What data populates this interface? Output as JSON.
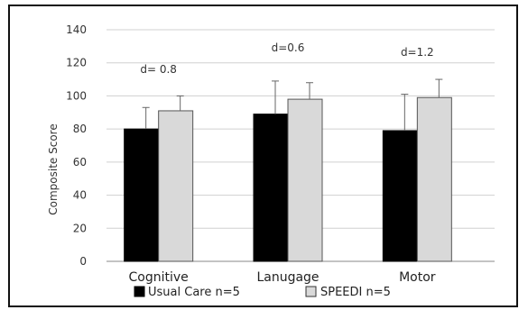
{
  "chart_data": {
    "type": "bar",
    "categories": [
      "Cognitive",
      "Lanugage",
      "Motor"
    ],
    "series": [
      {
        "name": "Usual Care n=5",
        "values": [
          80,
          89,
          79
        ],
        "errors": [
          13,
          20,
          22
        ],
        "color": "#000000"
      },
      {
        "name": "SPEEDI n=5",
        "values": [
          91,
          98,
          99
        ],
        "errors": [
          9,
          10,
          11
        ],
        "color": "#d9d9d9"
      }
    ],
    "annotations": [
      "d= 0.8",
      "d=0.6",
      "d=1.2"
    ],
    "ylabel": "Composite Score",
    "ylim": [
      0,
      140
    ],
    "yticks": [
      0,
      20,
      40,
      60,
      80,
      100,
      120,
      140
    ],
    "grid": true,
    "legend_position": "bottom"
  }
}
